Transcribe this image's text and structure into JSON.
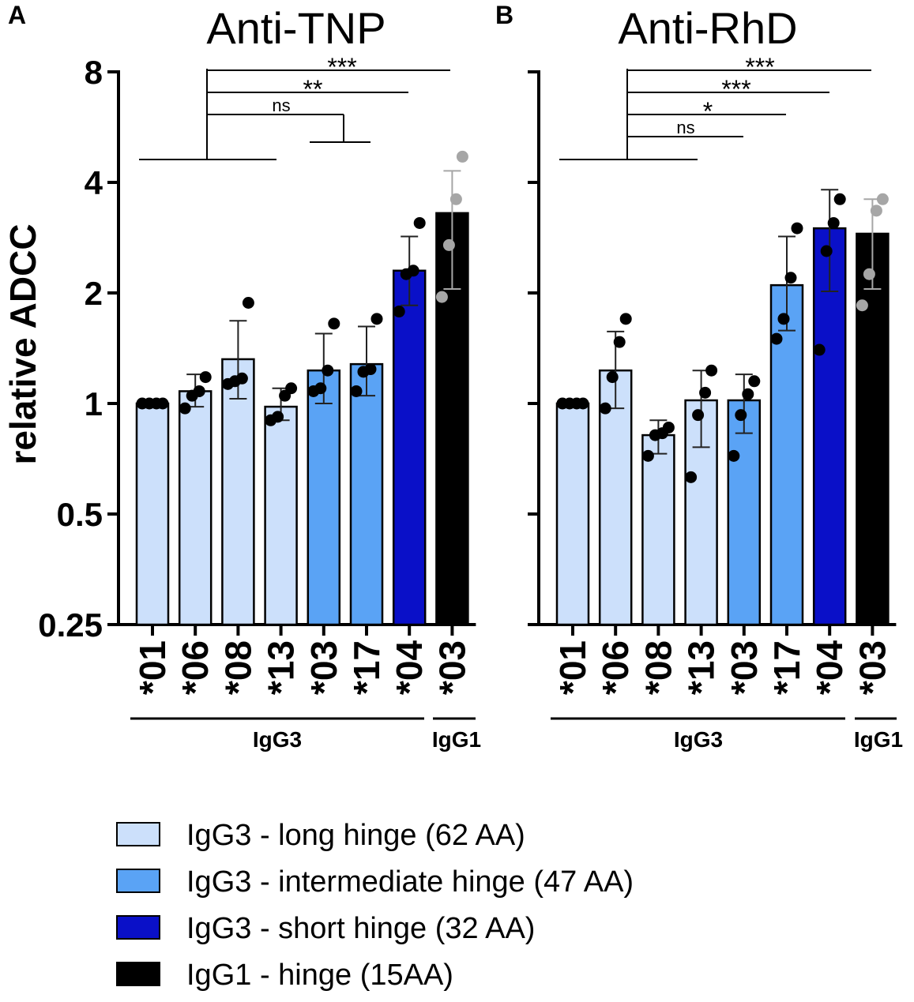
{
  "chart_data": [
    {
      "panel_label": "A",
      "type": "bar",
      "title": "Anti-TNP",
      "ylabel": "relative ADCC",
      "yscale": "log2",
      "ylim": [
        0.25,
        8
      ],
      "yticks": [
        0.25,
        0.5,
        1,
        2,
        4,
        8
      ],
      "ytick_labels": [
        "0.25",
        "0.5",
        "1",
        "2",
        "4",
        "8"
      ],
      "categories": [
        "*01",
        "*06",
        "*08",
        "*13",
        "*03",
        "*17",
        "*04",
        "*03"
      ],
      "groups": [
        {
          "label": "IgG3",
          "from": 0,
          "to": 6
        },
        {
          "label": "IgG1",
          "from": 7,
          "to": 7
        }
      ],
      "hinge": [
        "long",
        "long",
        "long",
        "long",
        "intermediate",
        "intermediate",
        "short",
        "igg1"
      ],
      "values": [
        1.0,
        1.08,
        1.32,
        0.98,
        1.23,
        1.28,
        2.3,
        3.3
      ],
      "error_low": [
        1.0,
        0.98,
        1.03,
        0.9,
        1.0,
        1.05,
        1.85,
        2.05
      ],
      "error_high": [
        1.0,
        1.2,
        1.68,
        1.1,
        1.55,
        1.62,
        2.85,
        4.3
      ],
      "points": [
        [
          1.0,
          1.0,
          1.0,
          1.0
        ],
        [
          0.97,
          1.05,
          1.08,
          1.18
        ],
        [
          1.13,
          1.15,
          1.17,
          1.88
        ],
        [
          0.9,
          0.92,
          1.05,
          1.1
        ],
        [
          1.08,
          1.1,
          1.23,
          1.65
        ],
        [
          1.08,
          1.22,
          1.24,
          1.7
        ],
        [
          1.78,
          2.25,
          2.3,
          3.1
        ],
        [
          1.95,
          2.7,
          3.6,
          4.7
        ]
      ],
      "point_colors": [
        "black",
        "black",
        "black",
        "black",
        "black",
        "black",
        "black",
        "gray"
      ],
      "significance": [
        {
          "label": "ns",
          "ref_from": 0,
          "ref_to": 3,
          "cmp_from": 4,
          "cmp_to": 5
        },
        {
          "label": "**",
          "ref_from": 0,
          "ref_to": 3,
          "cmp": 6
        },
        {
          "label": "***",
          "ref_from": 0,
          "ref_to": 3,
          "cmp": 7
        }
      ]
    },
    {
      "panel_label": "B",
      "type": "bar",
      "title": "Anti-RhD",
      "yscale": "log2",
      "ylim": [
        0.25,
        8
      ],
      "categories": [
        "*01",
        "*06",
        "*08",
        "*13",
        "*03",
        "*17",
        "*04",
        "*03"
      ],
      "groups": [
        {
          "label": "IgG3",
          "from": 0,
          "to": 6
        },
        {
          "label": "IgG1",
          "from": 7,
          "to": 7
        }
      ],
      "hinge": [
        "long",
        "long",
        "long",
        "long",
        "intermediate",
        "intermediate",
        "short",
        "igg1"
      ],
      "values": [
        1.0,
        1.23,
        0.82,
        1.02,
        1.02,
        2.1,
        3.0,
        2.9
      ],
      "error_low": [
        1.0,
        0.97,
        0.73,
        0.76,
        0.83,
        1.58,
        2.02,
        2.05
      ],
      "error_high": [
        1.0,
        1.57,
        0.9,
        1.23,
        1.2,
        2.85,
        3.82,
        3.6
      ],
      "points": [
        [
          1.0,
          1.0,
          1.0,
          1.0
        ],
        [
          0.97,
          1.18,
          1.47,
          1.7
        ],
        [
          0.72,
          0.82,
          0.83,
          0.86
        ],
        [
          0.63,
          0.93,
          1.07,
          1.23
        ],
        [
          0.72,
          0.93,
          1.06,
          1.15
        ],
        [
          1.5,
          1.7,
          2.2,
          3.0
        ],
        [
          1.4,
          2.6,
          3.1,
          3.6
        ],
        [
          1.85,
          2.25,
          3.35,
          3.6
        ]
      ],
      "point_colors": [
        "black",
        "black",
        "black",
        "black",
        "black",
        "black",
        "black",
        "gray"
      ],
      "significance": [
        {
          "label": "ns",
          "ref_from": 0,
          "ref_to": 3,
          "cmp": 4
        },
        {
          "label": "*",
          "ref_from": 0,
          "ref_to": 3,
          "cmp": 5
        },
        {
          "label": "***",
          "ref_from": 0,
          "ref_to": 3,
          "cmp": 6
        },
        {
          "label": "***",
          "ref_from": 0,
          "ref_to": 3,
          "cmp": 7
        }
      ]
    }
  ],
  "colors": {
    "long": "#cce0fb",
    "intermediate": "#5aa3f5",
    "short": "#0a10c8",
    "igg1": "#000000",
    "gray_point": "#a6a6a6",
    "black_point": "#000000"
  },
  "legend": [
    {
      "key": "long",
      "label": "IgG3 - long hinge (62 AA)"
    },
    {
      "key": "intermediate",
      "label": "IgG3 - intermediate hinge (47 AA)"
    },
    {
      "key": "short",
      "label": "IgG3 - short hinge (32 AA)"
    },
    {
      "key": "igg1",
      "label": "IgG1 - hinge (15AA)"
    }
  ]
}
